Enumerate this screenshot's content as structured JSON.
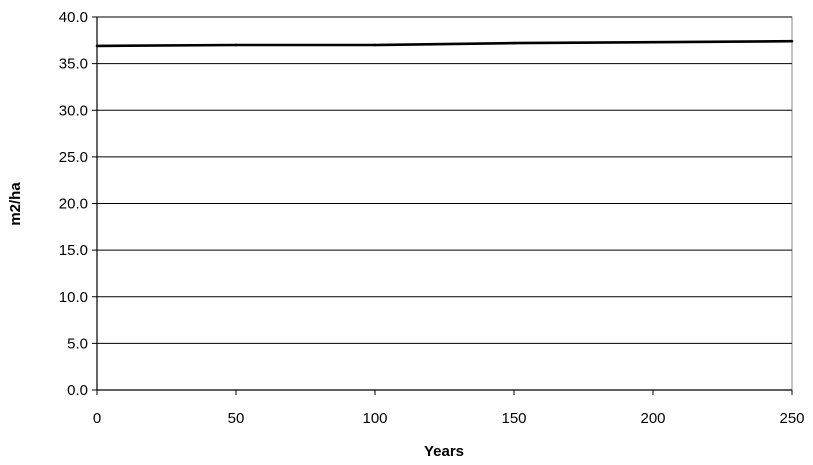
{
  "chart_data": {
    "type": "line",
    "title": "",
    "xlabel": "Years",
    "ylabel": "m2/ha",
    "xlim": [
      0,
      250
    ],
    "ylim": [
      0,
      40
    ],
    "x_ticks": [
      0,
      50,
      100,
      150,
      200,
      250
    ],
    "y_ticks": [
      0,
      5,
      10,
      15,
      20,
      25,
      30,
      35,
      40
    ],
    "x_tick_labels": [
      "0",
      "50",
      "100",
      "150",
      "200",
      "250"
    ],
    "y_tick_labels": [
      "0.0",
      "5.0",
      "10.0",
      "15.0",
      "20.0",
      "25.0",
      "30.0",
      "35.0",
      "40.0"
    ],
    "grid": "horizontal",
    "legend": "none",
    "series": [
      {
        "x": [
          0,
          50,
          100,
          150,
          200,
          250
        ],
        "y": [
          36.9,
          37.0,
          37.0,
          37.2,
          37.3,
          37.4
        ],
        "color": "#000000"
      }
    ]
  },
  "colors": {
    "line": "#000000",
    "grid": "#000000",
    "frame": "#888888"
  }
}
